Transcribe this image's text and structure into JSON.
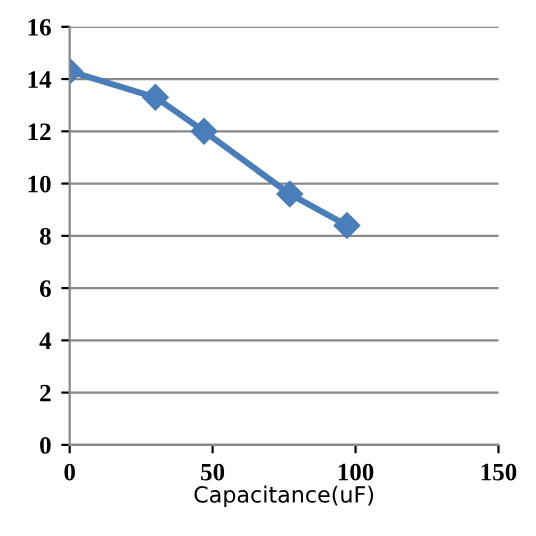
{
  "chart_data": {
    "type": "line",
    "xlabel": "Capacitance(uF)",
    "x": [
      0,
      30,
      47,
      77,
      97
    ],
    "series": [
      {
        "color": "#4a7ebb",
        "values": [
          14.3,
          13.3,
          12.0,
          9.6,
          8.4
        ]
      }
    ],
    "xlim": [
      0,
      150
    ],
    "xticks": [
      0,
      50,
      100,
      150
    ],
    "ylim": [
      0,
      16
    ],
    "yticks": [
      0,
      2,
      4,
      6,
      8,
      10,
      12,
      14,
      16
    ],
    "grid": "y",
    "marker": "diamond",
    "line_style": "solid"
  }
}
